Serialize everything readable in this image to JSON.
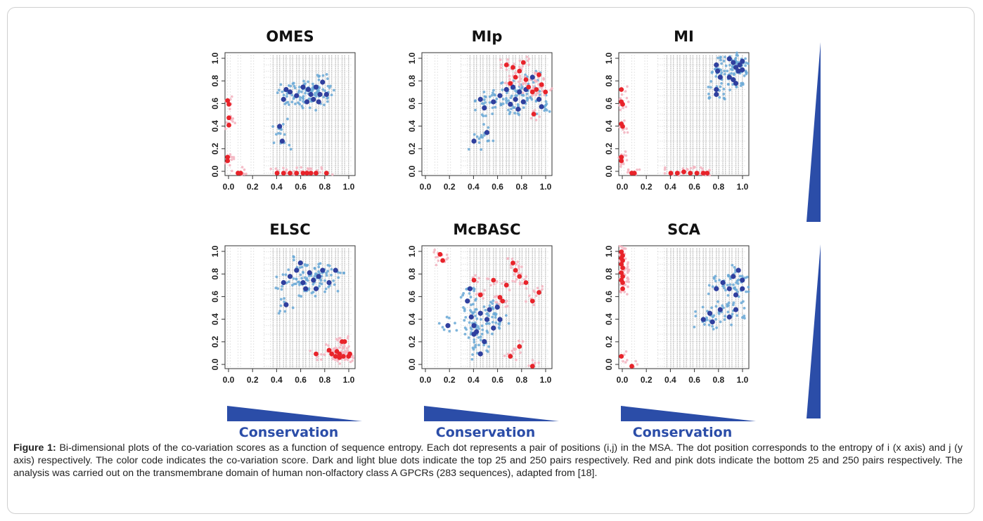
{
  "caption": {
    "label": "Figure 1:",
    "text": "Bi-dimensional plots of the co-variation scores as a function of sequence entropy. Each dot represents a pair of positions (i,j) in the MSA. The dot position corresponds to the entropy of i (x axis) and j (y axis) respectively. The color code indicates the co-variation score. Dark and light blue dots indicate the top 25 and 250 pairs respectively. Red and pink dots indicate the bottom 25 and 250 pairs respectively. The analysis was carried out on the transmembrane domain of human non-olfactory class A GPCRs (283 sequences), adapted from [18]."
  },
  "conservation_label": "Conservation",
  "colors": {
    "background_pair": "#c3c3c3",
    "top25": "#2f3f9e",
    "top250": "#69a8d6",
    "bottom25": "#e8232a",
    "bottom250": "#f4b6c2",
    "wedge": "#2b4da8"
  },
  "chart_data": [
    {
      "type": "scatter",
      "title": "OMES",
      "xlim": [
        0,
        1
      ],
      "ylim": [
        0,
        1
      ],
      "xticks": [
        "0.0",
        "0.2",
        "0.4",
        "0.6",
        "0.8",
        "1.0"
      ],
      "yticks": [
        "0.0",
        "0.2",
        "0.4",
        "0.6",
        "0.8",
        "1.0"
      ],
      "top25": [
        [
          0.45,
          0.62
        ],
        [
          0.47,
          0.7
        ],
        [
          0.5,
          0.68
        ],
        [
          0.55,
          0.65
        ],
        [
          0.6,
          0.72
        ],
        [
          0.64,
          0.7
        ],
        [
          0.66,
          0.66
        ],
        [
          0.68,
          0.62
        ],
        [
          0.7,
          0.72
        ],
        [
          0.72,
          0.6
        ],
        [
          0.73,
          0.66
        ],
        [
          0.63,
          0.6
        ],
        [
          0.42,
          0.4
        ],
        [
          0.44,
          0.28
        ],
        [
          0.78,
          0.66
        ],
        [
          0.75,
          0.76
        ]
      ],
      "bottom25": [
        [
          0.02,
          0.61
        ],
        [
          0.03,
          0.58
        ],
        [
          0.03,
          0.47
        ],
        [
          0.03,
          0.41
        ],
        [
          0.02,
          0.15
        ],
        [
          0.02,
          0.12
        ],
        [
          0.1,
          0.02
        ],
        [
          0.12,
          0.02
        ],
        [
          0.4,
          0.02
        ],
        [
          0.45,
          0.02
        ],
        [
          0.5,
          0.02
        ],
        [
          0.55,
          0.02
        ],
        [
          0.6,
          0.02
        ],
        [
          0.63,
          0.02
        ],
        [
          0.66,
          0.02
        ],
        [
          0.7,
          0.02
        ],
        [
          0.78,
          0.02
        ]
      ]
    },
    {
      "type": "scatter",
      "title": "MIp",
      "xlim": [
        0,
        1
      ],
      "ylim": [
        0,
        1
      ],
      "xticks": [
        "0.0",
        "0.2",
        "0.4",
        "0.6",
        "0.8",
        "1.0"
      ],
      "yticks": [
        "0.0",
        "0.2",
        "0.4",
        "0.6",
        "0.8",
        "1.0"
      ],
      "top25": [
        [
          0.45,
          0.62
        ],
        [
          0.48,
          0.55
        ],
        [
          0.5,
          0.35
        ],
        [
          0.55,
          0.6
        ],
        [
          0.6,
          0.65
        ],
        [
          0.65,
          0.7
        ],
        [
          0.7,
          0.72
        ],
        [
          0.72,
          0.62
        ],
        [
          0.75,
          0.68
        ],
        [
          0.78,
          0.6
        ],
        [
          0.8,
          0.7
        ],
        [
          0.85,
          0.8
        ],
        [
          0.9,
          0.62
        ],
        [
          0.92,
          0.56
        ],
        [
          0.4,
          0.28
        ],
        [
          0.68,
          0.58
        ],
        [
          0.74,
          0.54
        ]
      ],
      "bottom25": [
        [
          0.65,
          0.9
        ],
        [
          0.7,
          0.88
        ],
        [
          0.72,
          0.8
        ],
        [
          0.75,
          0.85
        ],
        [
          0.8,
          0.78
        ],
        [
          0.82,
          0.72
        ],
        [
          0.85,
          0.68
        ],
        [
          0.88,
          0.7
        ],
        [
          0.9,
          0.82
        ],
        [
          0.78,
          0.92
        ],
        [
          0.86,
          0.5
        ],
        [
          0.92,
          0.74
        ],
        [
          0.68,
          0.75
        ],
        [
          0.95,
          0.68
        ]
      ]
    },
    {
      "type": "scatter",
      "title": "MI",
      "xlim": [
        0,
        1
      ],
      "ylim": [
        0,
        1
      ],
      "xticks": [
        "0.0",
        "0.2",
        "0.4",
        "0.6",
        "0.8",
        "1.0"
      ],
      "yticks": [
        "0.0",
        "0.2",
        "0.4",
        "0.6",
        "0.8",
        "1.0"
      ],
      "top25": [
        [
          0.75,
          0.9
        ],
        [
          0.76,
          0.85
        ],
        [
          0.78,
          0.8
        ],
        [
          0.75,
          0.7
        ],
        [
          0.85,
          0.95
        ],
        [
          0.88,
          0.92
        ],
        [
          0.9,
          0.88
        ],
        [
          0.92,
          0.85
        ],
        [
          0.95,
          0.93
        ],
        [
          0.85,
          0.8
        ],
        [
          0.88,
          0.78
        ],
        [
          0.9,
          0.75
        ],
        [
          0.93,
          0.9
        ],
        [
          0.95,
          0.86
        ],
        [
          0.75,
          0.66
        ]
      ],
      "bottom25": [
        [
          0.02,
          0.7
        ],
        [
          0.02,
          0.6
        ],
        [
          0.03,
          0.58
        ],
        [
          0.02,
          0.42
        ],
        [
          0.03,
          0.4
        ],
        [
          0.02,
          0.15
        ],
        [
          0.02,
          0.12
        ],
        [
          0.1,
          0.02
        ],
        [
          0.12,
          0.02
        ],
        [
          0.4,
          0.02
        ],
        [
          0.45,
          0.02
        ],
        [
          0.5,
          0.03
        ],
        [
          0.55,
          0.02
        ],
        [
          0.6,
          0.02
        ],
        [
          0.65,
          0.02
        ],
        [
          0.68,
          0.02
        ]
      ]
    },
    {
      "type": "scatter",
      "title": "ELSC",
      "xlim": [
        0,
        1
      ],
      "ylim": [
        0,
        1
      ],
      "xticks": [
        "0.0",
        "0.2",
        "0.4",
        "0.6",
        "0.8",
        "1.0"
      ],
      "yticks": [
        "0.0",
        "0.2",
        "0.4",
        "0.6",
        "0.8",
        "1.0"
      ],
      "top25": [
        [
          0.45,
          0.7
        ],
        [
          0.5,
          0.75
        ],
        [
          0.55,
          0.8
        ],
        [
          0.6,
          0.7
        ],
        [
          0.65,
          0.78
        ],
        [
          0.68,
          0.72
        ],
        [
          0.7,
          0.65
        ],
        [
          0.72,
          0.75
        ],
        [
          0.75,
          0.8
        ],
        [
          0.8,
          0.7
        ],
        [
          0.85,
          0.8
        ],
        [
          0.47,
          0.52
        ],
        [
          0.62,
          0.65
        ],
        [
          0.58,
          0.86
        ]
      ],
      "bottom25": [
        [
          0.7,
          0.12
        ],
        [
          0.8,
          0.15
        ],
        [
          0.82,
          0.12
        ],
        [
          0.85,
          0.1
        ],
        [
          0.88,
          0.12
        ],
        [
          0.9,
          0.22
        ],
        [
          0.92,
          0.22
        ],
        [
          0.95,
          0.1
        ],
        [
          0.96,
          0.12
        ],
        [
          0.88,
          0.09
        ],
        [
          0.91,
          0.1
        ],
        [
          0.86,
          0.14
        ]
      ]
    },
    {
      "type": "scatter",
      "title": "McBASC",
      "xlim": [
        0,
        1
      ],
      "ylim": [
        0,
        1
      ],
      "xticks": [
        "0.0",
        "0.2",
        "0.4",
        "0.6",
        "0.8",
        "1.0"
      ],
      "yticks": [
        "0.0",
        "0.2",
        "0.4",
        "0.6",
        "0.8",
        "1.0"
      ],
      "top25": [
        [
          0.35,
          0.55
        ],
        [
          0.38,
          0.42
        ],
        [
          0.4,
          0.35
        ],
        [
          0.42,
          0.3
        ],
        [
          0.45,
          0.45
        ],
        [
          0.48,
          0.22
        ],
        [
          0.5,
          0.4
        ],
        [
          0.52,
          0.48
        ],
        [
          0.55,
          0.33
        ],
        [
          0.58,
          0.5
        ],
        [
          0.4,
          0.28
        ],
        [
          0.37,
          0.65
        ],
        [
          0.6,
          0.4
        ],
        [
          0.2,
          0.35
        ],
        [
          0.45,
          0.12
        ]
      ],
      "bottom25": [
        [
          0.14,
          0.93
        ],
        [
          0.16,
          0.88
        ],
        [
          0.4,
          0.72
        ],
        [
          0.45,
          0.6
        ],
        [
          0.55,
          0.72
        ],
        [
          0.6,
          0.58
        ],
        [
          0.62,
          0.55
        ],
        [
          0.65,
          0.68
        ],
        [
          0.7,
          0.86
        ],
        [
          0.72,
          0.8
        ],
        [
          0.75,
          0.75
        ],
        [
          0.8,
          0.7
        ],
        [
          0.85,
          0.55
        ],
        [
          0.9,
          0.62
        ],
        [
          0.68,
          0.1
        ],
        [
          0.85,
          0.02
        ],
        [
          0.75,
          0.18
        ]
      ]
    },
    {
      "type": "scatter",
      "title": "SCA",
      "xlim": [
        0,
        1
      ],
      "ylim": [
        0,
        1
      ],
      "xticks": [
        "0.0",
        "0.2",
        "0.4",
        "0.6",
        "0.8",
        "1.0"
      ],
      "yticks": [
        "0.0",
        "0.2",
        "0.4",
        "0.6",
        "0.8",
        "1.0"
      ],
      "top25": [
        [
          0.65,
          0.4
        ],
        [
          0.7,
          0.45
        ],
        [
          0.75,
          0.65
        ],
        [
          0.8,
          0.7
        ],
        [
          0.85,
          0.65
        ],
        [
          0.88,
          0.75
        ],
        [
          0.9,
          0.6
        ],
        [
          0.92,
          0.8
        ],
        [
          0.95,
          0.72
        ],
        [
          0.78,
          0.48
        ],
        [
          0.85,
          0.42
        ],
        [
          0.9,
          0.48
        ],
        [
          0.95,
          0.65
        ],
        [
          0.72,
          0.38
        ]
      ],
      "bottom25": [
        [
          0.02,
          0.95
        ],
        [
          0.03,
          0.92
        ],
        [
          0.02,
          0.9
        ],
        [
          0.03,
          0.88
        ],
        [
          0.02,
          0.85
        ],
        [
          0.03,
          0.82
        ],
        [
          0.02,
          0.78
        ],
        [
          0.03,
          0.75
        ],
        [
          0.02,
          0.72
        ],
        [
          0.03,
          0.7
        ],
        [
          0.03,
          0.65
        ],
        [
          0.02,
          0.1
        ],
        [
          0.1,
          0.02
        ]
      ]
    }
  ]
}
